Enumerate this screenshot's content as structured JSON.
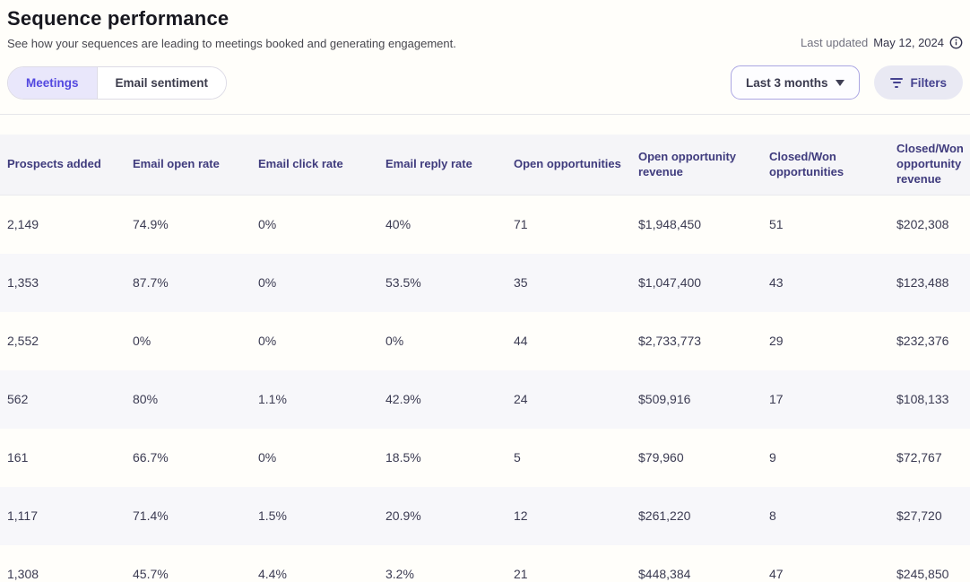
{
  "page": {
    "title": "Sequence performance",
    "subtitle": "See how your sequences are leading to meetings booked and generating engagement.",
    "last_updated_label": "Last updated",
    "last_updated_date": "May 12, 2024"
  },
  "tabs": [
    {
      "label": "Meetings",
      "active": true
    },
    {
      "label": "Email sentiment",
      "active": false
    }
  ],
  "controls": {
    "date_range_label": "Last 3 months",
    "filters_label": "Filters"
  },
  "icons": {
    "info": "info-circle-icon",
    "caret": "chevron-down-icon",
    "filter": "filter-lines-icon"
  },
  "colors": {
    "accent_purple": "#5348e0",
    "active_tab_bg": "#e9e7fb",
    "header_text": "#3f3b7d",
    "header_bg": "#f5f5f8",
    "alt_row_bg": "#f7f7fa",
    "filters_btn_bg": "#e9e9f3",
    "date_btn_border": "#aba6e3"
  },
  "chart_data": {
    "type": "table",
    "title": "Sequence performance",
    "columns": [
      "Prospects added",
      "Email open rate",
      "Email click rate",
      "Email reply rate",
      "Open opportunities",
      "Open opportunity revenue",
      "Closed/Won opportunities",
      "Closed/Won opportunity revenue"
    ],
    "rows": [
      [
        "2,149",
        "74.9%",
        "0%",
        "40%",
        "71",
        "$1,948,450",
        "51",
        "$202,308"
      ],
      [
        "1,353",
        "87.7%",
        "0%",
        "53.5%",
        "35",
        "$1,047,400",
        "43",
        "$123,488"
      ],
      [
        "2,552",
        "0%",
        "0%",
        "0%",
        "44",
        "$2,733,773",
        "29",
        "$232,376"
      ],
      [
        "562",
        "80%",
        "1.1%",
        "42.9%",
        "24",
        "$509,916",
        "17",
        "$108,133"
      ],
      [
        "161",
        "66.7%",
        "0%",
        "18.5%",
        "5",
        "$79,960",
        "9",
        "$72,767"
      ],
      [
        "1,117",
        "71.4%",
        "1.5%",
        "20.9%",
        "12",
        "$261,220",
        "8",
        "$27,720"
      ],
      [
        "1,308",
        "45.7%",
        "4.4%",
        "3.2%",
        "21",
        "$448,384",
        "47",
        "$245,850"
      ]
    ]
  }
}
